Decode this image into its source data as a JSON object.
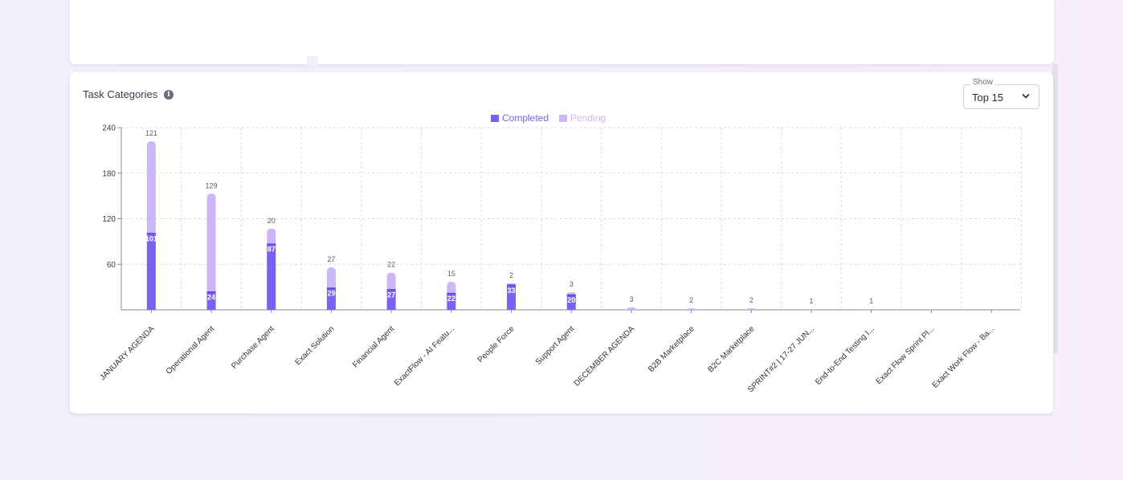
{
  "card": {
    "title": "Task Categories",
    "info_icon": "info-icon"
  },
  "show_select": {
    "label": "Show",
    "value": "Top 15",
    "icon": "chevron-down-icon"
  },
  "colors": {
    "completed": "#7b61ef",
    "pending": "#cdb6f6",
    "grid": "#d9d9de",
    "axis": "#8a8a94",
    "text": "#4a4a55"
  },
  "chart_data": {
    "type": "bar",
    "stacked": true,
    "legend_position": "top-center",
    "grid": true,
    "ylim": [
      0,
      240
    ],
    "yticks": [
      60,
      120,
      180,
      240
    ],
    "categories": [
      "JANUARY AGENDA",
      "Operational Agent",
      "Purchase Agent",
      "Exact Solution",
      "Financial Agent",
      "ExactFlow - AI Featu...",
      "People Force",
      "Support Agent",
      "DECEMBER AGENDA",
      "B2B Marketplace",
      "B2C Marketplace",
      "SPRINT#2 | 17-27 JUN...",
      "End-to-End Testing I...",
      "Exact Flow Sprint Pl...",
      "Exact Work Flow - Ba..."
    ],
    "series": [
      {
        "name": "Completed",
        "values": [
          101,
          24,
          87,
          29,
          27,
          22,
          33,
          20,
          0,
          0,
          0,
          0,
          0,
          0,
          0
        ]
      },
      {
        "name": "Pending",
        "values": [
          121,
          129,
          20,
          27,
          22,
          15,
          2,
          3,
          3,
          2,
          2,
          1,
          1,
          0,
          0
        ]
      }
    ]
  }
}
